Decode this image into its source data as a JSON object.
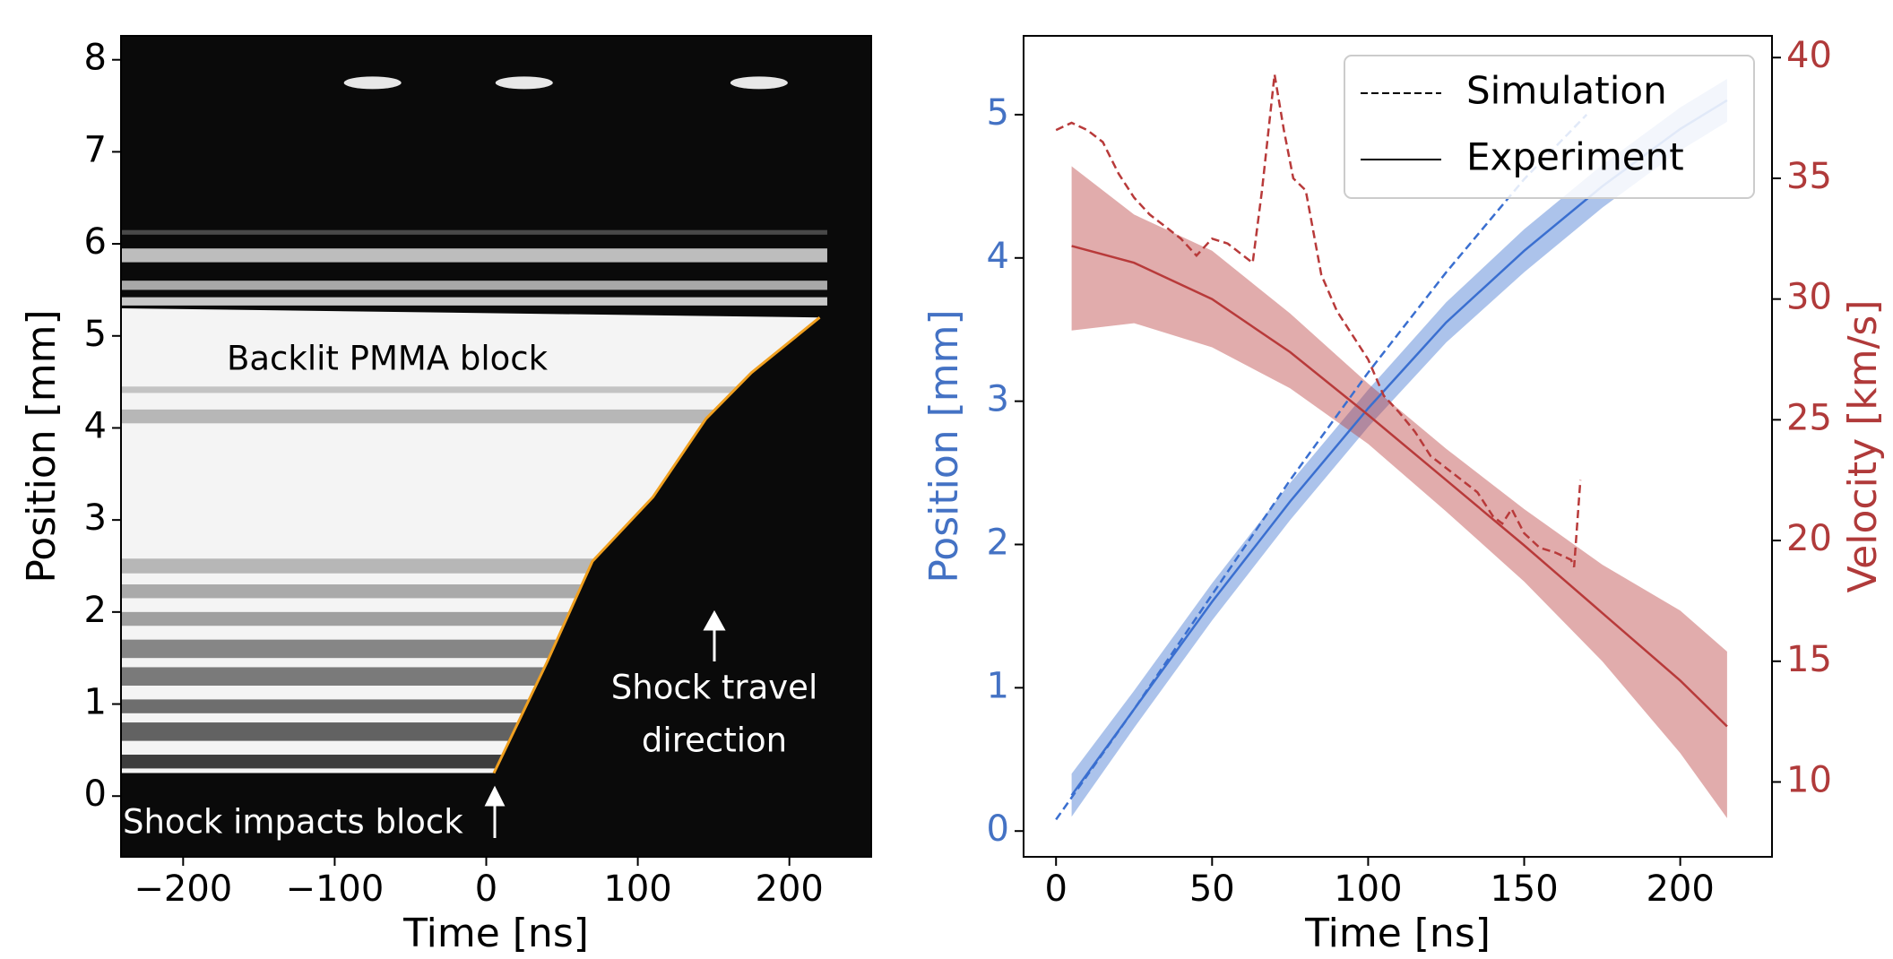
{
  "chart_data": [
    {
      "type": "image",
      "xlabel": "Time [ns]",
      "ylabel": "Position [mm]",
      "xlim": [
        -241,
        254
      ],
      "ylim": [
        -0.66,
        8.26
      ],
      "xticks": [
        {
          "value": -200,
          "label": "−200"
        },
        {
          "value": -100,
          "label": "−100"
        },
        0,
        100,
        200
      ],
      "yticks": [
        0,
        1,
        2,
        3,
        4,
        5,
        6,
        7,
        8
      ],
      "annotations": [
        "Backlit PMMA block",
        "Shock travel",
        "direction",
        "Shock impacts block"
      ],
      "series": [
        {
          "color": "#f0a020",
          "x": [
            5,
            40,
            70,
            110,
            145,
            175,
            220
          ],
          "values": [
            0.25,
            1.45,
            2.55,
            3.25,
            4.1,
            4.6,
            5.2
          ]
        }
      ]
    },
    {
      "type": "line",
      "xlabel": "Time [ns]",
      "ylabel": "Position [mm]",
      "y2label": "Velocity [km/s]",
      "xlim": [
        -10.4,
        229.4
      ],
      "ylim": [
        -0.18,
        5.55
      ],
      "y2lim": [
        6.9,
        40.9
      ],
      "xticks": [
        0,
        50,
        100,
        150,
        200
      ],
      "yticks": [
        0,
        1,
        2,
        3,
        4,
        5
      ],
      "y2ticks": [
        10,
        15,
        20,
        25,
        30,
        35,
        40
      ],
      "ycolor": "#4472c4",
      "y2color": "#b03a3a",
      "legend": {
        "position": "upper right",
        "entries": [
          {
            "label": "Simulation",
            "dash": "dashed"
          },
          {
            "label": "Experiment",
            "dash": "solid"
          }
        ]
      },
      "series": [
        {
          "color": "#3a6fd0",
          "dash": "solid",
          "axis": "y",
          "x": [
            5,
            25,
            50,
            75,
            100,
            125,
            150,
            175,
            200,
            215
          ],
          "values": [
            0.25,
            0.85,
            1.6,
            2.3,
            2.95,
            3.55,
            4.05,
            4.5,
            4.9,
            5.1
          ],
          "band": {
            "lower": [
              0.1,
              0.72,
              1.47,
              2.17,
              2.82,
              3.41,
              3.9,
              4.35,
              4.75,
              4.95
            ],
            "upper": [
              0.4,
              0.98,
              1.73,
              2.43,
              3.08,
              3.69,
              4.2,
              4.65,
              5.05,
              5.25
            ]
          }
        },
        {
          "color": "#3a6fd0",
          "dash": "dashed",
          "axis": "y",
          "x": [
            0,
            25,
            50,
            75,
            100,
            125,
            150,
            170
          ],
          "values": [
            0.08,
            0.85,
            1.65,
            2.45,
            3.2,
            3.9,
            4.55,
            5.0
          ]
        },
        {
          "color": "#b83a3a",
          "dash": "solid",
          "axis": "y2",
          "x": [
            5,
            25,
            50,
            75,
            100,
            125,
            150,
            175,
            200,
            215
          ],
          "values": [
            32.2,
            31.5,
            30.0,
            27.8,
            25.2,
            22.5,
            19.8,
            17.0,
            14.2,
            12.3
          ],
          "band": {
            "lower": [
              28.7,
              29.0,
              28.0,
              26.3,
              24.0,
              21.2,
              18.3,
              15.0,
              11.2,
              8.5
            ],
            "upper": [
              35.5,
              33.5,
              32.0,
              29.4,
              26.5,
              23.8,
              21.3,
              19.0,
              17.1,
              15.4
            ]
          }
        },
        {
          "color": "#b83a3a",
          "dash": "dashed",
          "axis": "y2",
          "x": [
            0,
            5,
            10,
            15,
            20,
            25,
            30,
            35,
            40,
            45,
            50,
            55,
            60,
            63,
            66,
            70,
            73,
            76,
            80,
            85,
            90,
            95,
            100,
            105,
            110,
            115,
            120,
            125,
            130,
            135,
            140,
            143,
            146,
            150,
            155,
            160,
            165,
            166,
            168
          ],
          "values": [
            37,
            37.3,
            37,
            36.5,
            35.2,
            34.2,
            33.5,
            33,
            32.5,
            31.8,
            32.5,
            32.3,
            31.8,
            31.5,
            34.5,
            39.3,
            37,
            35,
            34.5,
            31,
            29.5,
            28.5,
            27.5,
            26,
            25.3,
            24.5,
            23.5,
            23,
            22.5,
            22,
            21,
            20.7,
            21.3,
            20.3,
            19.7,
            19.5,
            19.2,
            18.9,
            22.5
          ]
        }
      ]
    }
  ]
}
